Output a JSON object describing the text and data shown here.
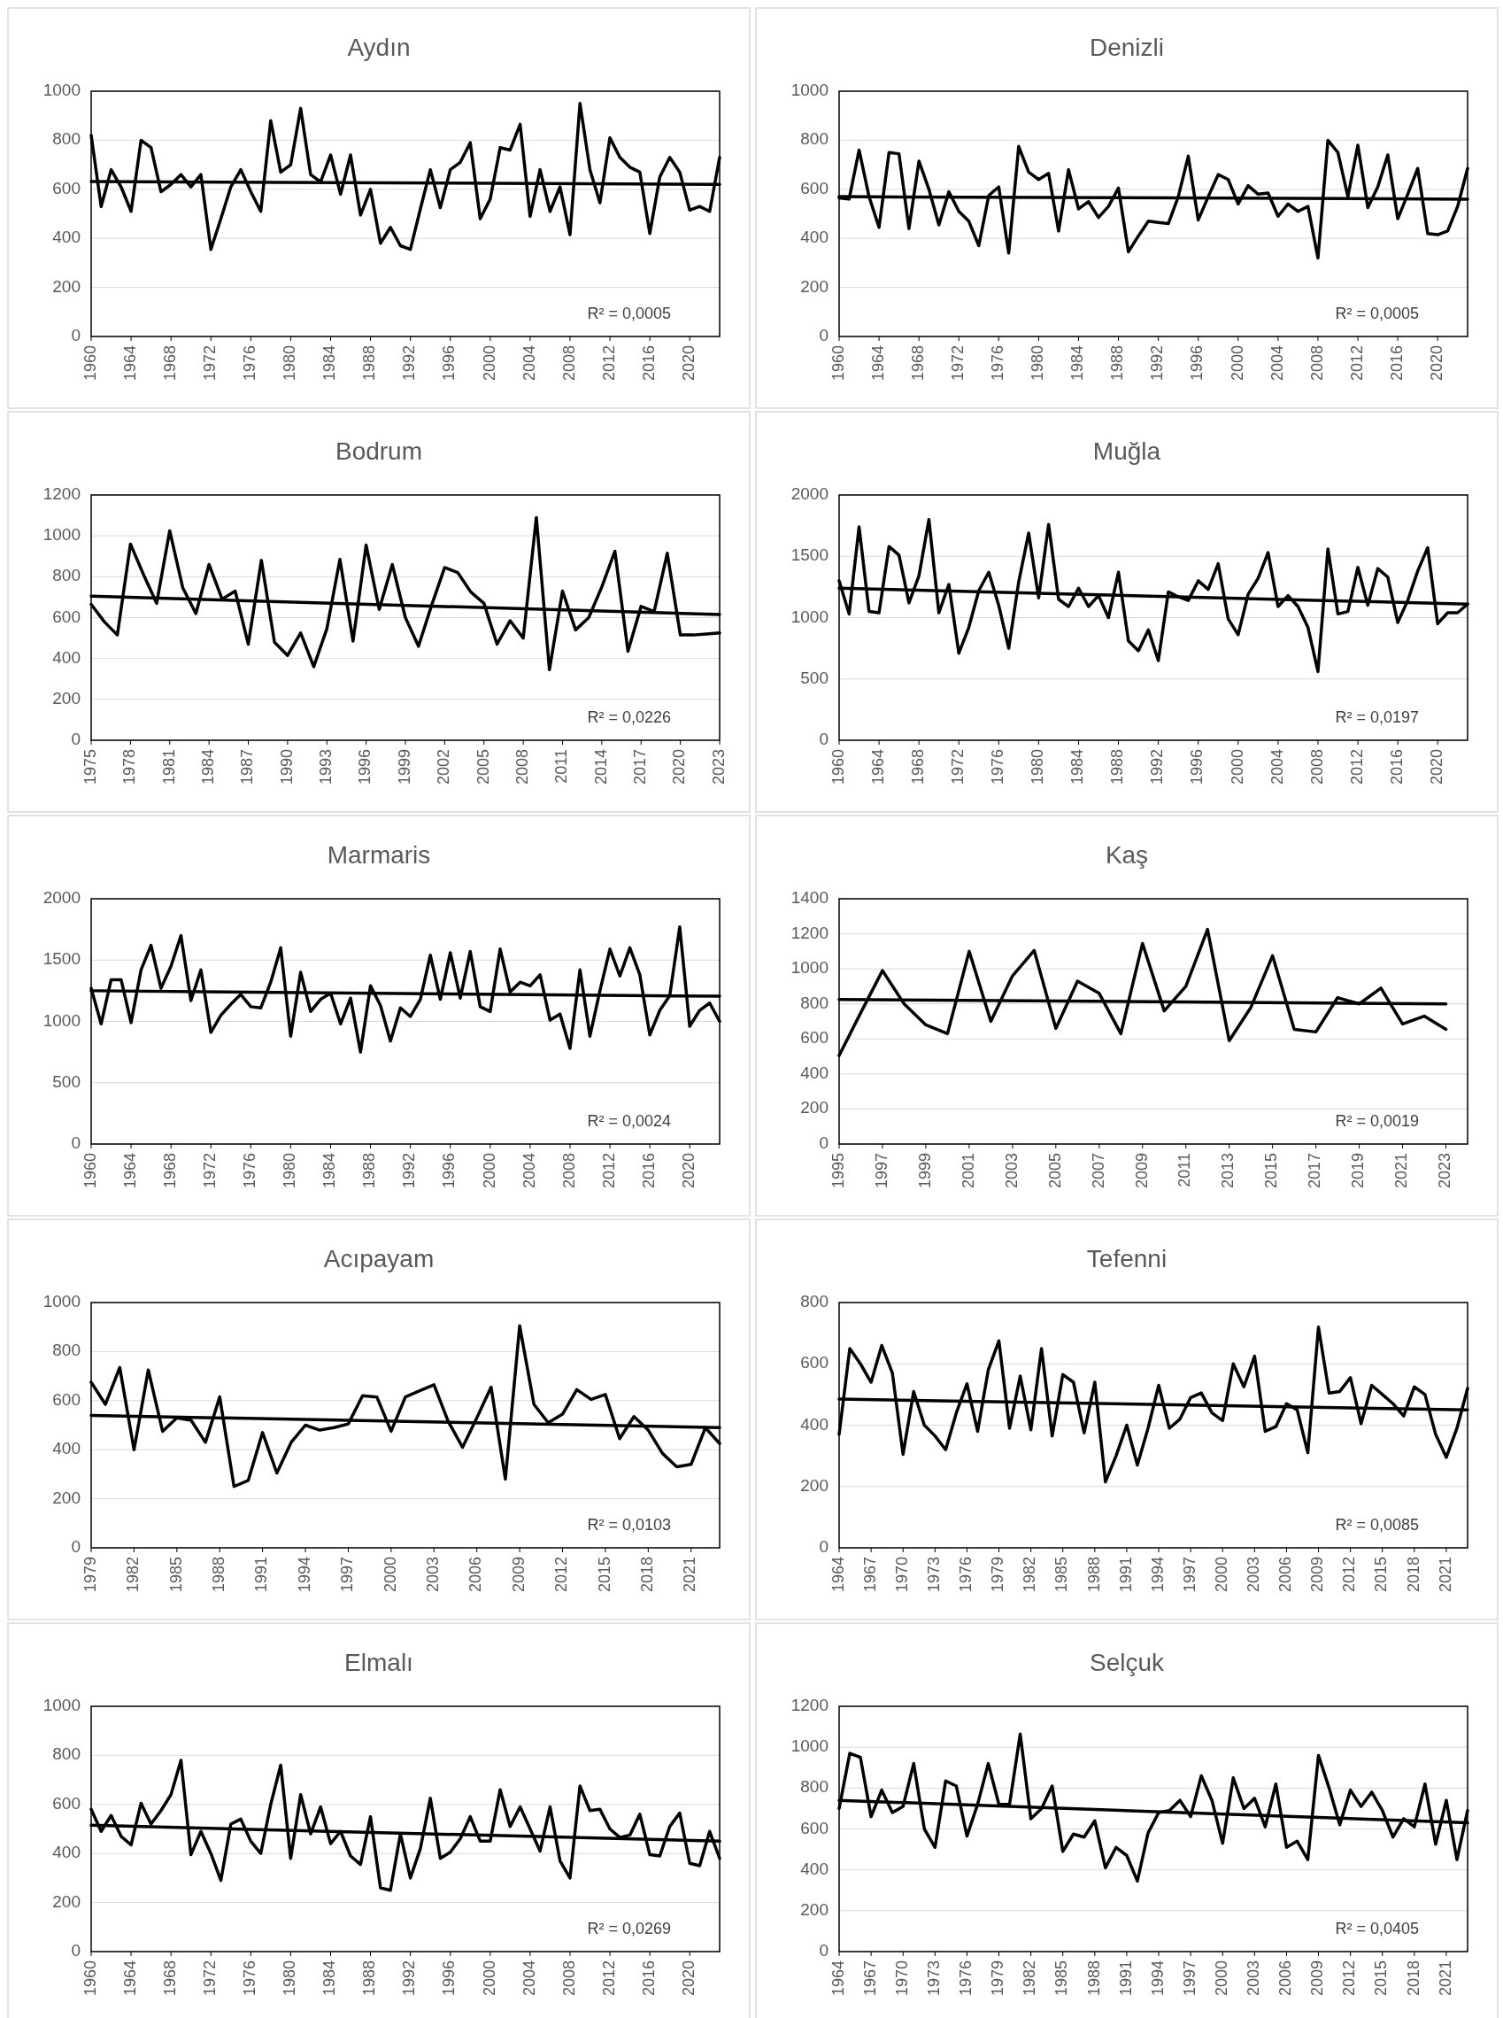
{
  "chart_data": [
    {
      "type": "line",
      "title": "Aydın",
      "x": [
        1960,
        1961,
        1962,
        1963,
        1964,
        1965,
        1966,
        1967,
        1968,
        1969,
        1970,
        1971,
        1972,
        1973,
        1974,
        1975,
        1976,
        1977,
        1978,
        1979,
        1980,
        1981,
        1982,
        1983,
        1984,
        1985,
        1986,
        1987,
        1988,
        1989,
        1990,
        1991,
        1992,
        1993,
        1994,
        1995,
        1996,
        1997,
        1998,
        1999,
        2000,
        2001,
        2002,
        2003,
        2004,
        2005,
        2006,
        2007,
        2008,
        2009,
        2010,
        2011,
        2012,
        2013,
        2014,
        2015,
        2016,
        2017,
        2018,
        2019,
        2020,
        2021,
        2022,
        2023
      ],
      "xlim": [
        1960,
        2023
      ],
      "xticks": [
        1960,
        1964,
        1968,
        1972,
        1976,
        1980,
        1984,
        1988,
        1992,
        1996,
        2000,
        2004,
        2008,
        2012,
        2016,
        2020
      ],
      "ylim": [
        0,
        1000
      ],
      "yticks": [
        0,
        200,
        400,
        600,
        800,
        1000
      ],
      "grid": "y",
      "series": [
        {
          "color": "#000000",
          "values": [
            820,
            530,
            680,
            610,
            510,
            800,
            770,
            590,
            620,
            660,
            610,
            660,
            355,
            480,
            610,
            680,
            590,
            510,
            880,
            670,
            700,
            930,
            660,
            630,
            740,
            580,
            740,
            495,
            600,
            380,
            445,
            370,
            355,
            520,
            680,
            525,
            680,
            710,
            790,
            480,
            560,
            770,
            760,
            865,
            490,
            680,
            510,
            610,
            415,
            950,
            680,
            545,
            810,
            730,
            690,
            670,
            420,
            650,
            730,
            670,
            515,
            530,
            510,
            730
          ]
        },
        {
          "type": "line",
          "color": "#000000",
          "x": [
            1960,
            2023
          ],
          "values": [
            632,
            620
          ]
        }
      ],
      "annotations": [
        "R² = 0,0005"
      ]
    },
    {
      "type": "line",
      "title": "Denizli",
      "x": [
        1960,
        1961,
        1962,
        1963,
        1964,
        1965,
        1966,
        1967,
        1968,
        1969,
        1970,
        1971,
        1972,
        1973,
        1974,
        1975,
        1976,
        1977,
        1978,
        1979,
        1980,
        1981,
        1982,
        1983,
        1984,
        1985,
        1986,
        1987,
        1988,
        1989,
        1990,
        1991,
        1992,
        1993,
        1994,
        1995,
        1996,
        1997,
        1998,
        1999,
        2000,
        2001,
        2002,
        2003,
        2004,
        2005,
        2006,
        2007,
        2008,
        2009,
        2010,
        2011,
        2012,
        2013,
        2014,
        2015,
        2016,
        2017,
        2018,
        2019,
        2020,
        2021,
        2022,
        2023
      ],
      "xlim": [
        1960,
        2023
      ],
      "xticks": [
        1960,
        1964,
        1968,
        1972,
        1976,
        1980,
        1984,
        1988,
        1992,
        1996,
        2000,
        2004,
        2008,
        2012,
        2016,
        2020
      ],
      "ylim": [
        0,
        1000
      ],
      "yticks": [
        0,
        200,
        400,
        600,
        800,
        1000
      ],
      "grid": "y",
      "series": [
        {
          "color": "#000000",
          "values": [
            565,
            560,
            760,
            570,
            445,
            750,
            745,
            440,
            715,
            600,
            455,
            590,
            510,
            470,
            370,
            575,
            610,
            340,
            775,
            670,
            640,
            665,
            430,
            680,
            520,
            550,
            485,
            530,
            605,
            345,
            410,
            470,
            465,
            460,
            570,
            735,
            475,
            570,
            660,
            640,
            540,
            615,
            580,
            585,
            490,
            540,
            510,
            530,
            320,
            800,
            750,
            570,
            780,
            525,
            610,
            740,
            480,
            580,
            685,
            420,
            415,
            430,
            530,
            685
          ]
        },
        {
          "type": "line",
          "color": "#000000",
          "x": [
            1960,
            2023
          ],
          "values": [
            570,
            560
          ]
        }
      ],
      "annotations": [
        "R² = 0,0005"
      ]
    },
    {
      "type": "line",
      "title": "Bodrum",
      "x": [
        1975,
        1976,
        1977,
        1978,
        1979,
        1980,
        1981,
        1982,
        1983,
        1984,
        1985,
        1986,
        1987,
        1988,
        1989,
        1990,
        1991,
        1992,
        1993,
        1994,
        1995,
        1996,
        1997,
        1998,
        1999,
        2000,
        2001,
        2002,
        2003,
        2004,
        2005,
        2006,
        2007,
        2008,
        2009,
        2010,
        2011,
        2012,
        2013,
        2014,
        2015,
        2016,
        2017,
        2018,
        2019,
        2020,
        2021,
        2022,
        2023
      ],
      "xlim": [
        1975,
        2023
      ],
      "xticks": [
        1975,
        1978,
        1981,
        1984,
        1987,
        1990,
        1993,
        1996,
        1999,
        2002,
        2005,
        2008,
        2011,
        2014,
        2017,
        2020,
        2023
      ],
      "ylim": [
        0,
        1200
      ],
      "yticks": [
        0,
        200,
        400,
        600,
        800,
        1000,
        1200
      ],
      "grid": "y",
      "series": [
        {
          "color": "#000000",
          "values": [
            665,
            580,
            515,
            960,
            810,
            670,
            1025,
            745,
            620,
            860,
            690,
            730,
            470,
            880,
            480,
            415,
            525,
            360,
            545,
            885,
            485,
            955,
            640,
            860,
            600,
            460,
            660,
            845,
            820,
            725,
            670,
            470,
            585,
            500,
            1090,
            345,
            730,
            540,
            600,
            750,
            925,
            435,
            655,
            630,
            915,
            515,
            515,
            520,
            525
          ]
        },
        {
          "type": "line",
          "color": "#000000",
          "x": [
            1975,
            2023
          ],
          "values": [
            705,
            615
          ]
        }
      ],
      "annotations": [
        "R² = 0,0226"
      ]
    },
    {
      "type": "line",
      "title": "Muğla",
      "x": [
        1960,
        1961,
        1962,
        1963,
        1964,
        1965,
        1966,
        1967,
        1968,
        1969,
        1970,
        1971,
        1972,
        1973,
        1974,
        1975,
        1976,
        1977,
        1978,
        1979,
        1980,
        1981,
        1982,
        1983,
        1984,
        1985,
        1986,
        1987,
        1988,
        1989,
        1990,
        1991,
        1992,
        1993,
        1994,
        1995,
        1996,
        1997,
        1998,
        1999,
        2000,
        2001,
        2002,
        2003,
        2004,
        2005,
        2006,
        2007,
        2008,
        2009,
        2010,
        2011,
        2012,
        2013,
        2014,
        2015,
        2016,
        2017,
        2018,
        2019,
        2020,
        2021,
        2022,
        2023
      ],
      "xlim": [
        1960,
        2023
      ],
      "xticks": [
        1960,
        1964,
        1968,
        1972,
        1976,
        1980,
        1984,
        1988,
        1992,
        1996,
        2000,
        2004,
        2008,
        2012,
        2016,
        2020
      ],
      "ylim": [
        0,
        2000
      ],
      "yticks": [
        0,
        500,
        1000,
        1500,
        2000
      ],
      "grid": "y",
      "series": [
        {
          "color": "#000000",
          "values": [
            1300,
            1030,
            1740,
            1050,
            1040,
            1580,
            1510,
            1120,
            1340,
            1800,
            1040,
            1270,
            710,
            920,
            1220,
            1370,
            1100,
            750,
            1290,
            1690,
            1160,
            1760,
            1150,
            1090,
            1240,
            1090,
            1180,
            1000,
            1370,
            810,
            730,
            900,
            650,
            1210,
            1170,
            1140,
            1300,
            1230,
            1440,
            990,
            860,
            1190,
            1320,
            1530,
            1090,
            1180,
            1090,
            920,
            560,
            1560,
            1030,
            1050,
            1410,
            1100,
            1400,
            1330,
            960,
            1140,
            1380,
            1570,
            950,
            1040,
            1040,
            1110
          ]
        },
        {
          "type": "line",
          "color": "#000000",
          "x": [
            1960,
            2023
          ],
          "values": [
            1240,
            1110
          ]
        }
      ],
      "annotations": [
        "R² = 0,0197"
      ]
    },
    {
      "type": "line",
      "title": "Marmaris",
      "x": [
        1960,
        1961,
        1962,
        1963,
        1964,
        1965,
        1966,
        1967,
        1968,
        1969,
        1970,
        1971,
        1972,
        1973,
        1974,
        1975,
        1976,
        1977,
        1978,
        1979,
        1980,
        1981,
        1982,
        1983,
        1984,
        1985,
        1986,
        1987,
        1988,
        1989,
        1990,
        1991,
        1992,
        1993,
        1994,
        1995,
        1996,
        1997,
        1998,
        1999,
        2000,
        2001,
        2002,
        2003,
        2004,
        2005,
        2006,
        2007,
        2008,
        2009,
        2010,
        2011,
        2012,
        2013,
        2014,
        2015,
        2016,
        2017,
        2018,
        2019,
        2020,
        2021,
        2022,
        2023
      ],
      "xlim": [
        1960,
        2023
      ],
      "xticks": [
        1960,
        1964,
        1968,
        1972,
        1976,
        1980,
        1984,
        1988,
        1992,
        1996,
        2000,
        2004,
        2008,
        2012,
        2016,
        2020
      ],
      "ylim": [
        0,
        2000
      ],
      "yticks": [
        0,
        500,
        1000,
        1500,
        2000
      ],
      "grid": "y",
      "series": [
        {
          "color": "#000000",
          "values": [
            1270,
            980,
            1340,
            1340,
            990,
            1420,
            1620,
            1270,
            1450,
            1700,
            1170,
            1420,
            910,
            1050,
            1140,
            1220,
            1120,
            1110,
            1320,
            1600,
            880,
            1400,
            1080,
            1180,
            1230,
            980,
            1190,
            750,
            1290,
            1130,
            840,
            1110,
            1040,
            1180,
            1540,
            1180,
            1560,
            1190,
            1570,
            1120,
            1080,
            1590,
            1240,
            1320,
            1290,
            1380,
            1010,
            1060,
            780,
            1420,
            880,
            1250,
            1590,
            1370,
            1600,
            1380,
            890,
            1090,
            1210,
            1770,
            960,
            1090,
            1150,
            1000
          ]
        },
        {
          "type": "line",
          "color": "#000000",
          "x": [
            1960,
            2023
          ],
          "values": [
            1250,
            1205
          ]
        }
      ],
      "annotations": [
        "R² = 0,0024"
      ]
    },
    {
      "type": "line",
      "title": "Kaş",
      "x": [
        1995,
        1996,
        1997,
        1998,
        1999,
        2000,
        2001,
        2002,
        2003,
        2004,
        2005,
        2006,
        2007,
        2008,
        2009,
        2010,
        2011,
        2012,
        2013,
        2014,
        2015,
        2016,
        2017,
        2018,
        2019,
        2020,
        2021,
        2022,
        2023
      ],
      "xlim": [
        1995,
        2024
      ],
      "xticks": [
        1995,
        1997,
        1999,
        2001,
        2003,
        2005,
        2007,
        2009,
        2011,
        2013,
        2015,
        2017,
        2019,
        2021,
        2023
      ],
      "ylim": [
        0,
        1400
      ],
      "yticks": [
        0,
        200,
        400,
        600,
        800,
        1000,
        1200,
        1400
      ],
      "grid": "y",
      "series": [
        {
          "color": "#000000",
          "values": [
            505,
            750,
            990,
            800,
            680,
            630,
            1100,
            700,
            960,
            1105,
            660,
            930,
            860,
            630,
            1145,
            760,
            900,
            1225,
            590,
            780,
            1075,
            655,
            640,
            835,
            800,
            890,
            685,
            730,
            655
          ]
        },
        {
          "type": "line",
          "color": "#000000",
          "x": [
            1995,
            2023
          ],
          "values": [
            825,
            800
          ]
        }
      ],
      "annotations": [
        "R² = 0,0019"
      ]
    },
    {
      "type": "line",
      "title": "Acıpayam",
      "x": [
        1979,
        1980,
        1981,
        1982,
        1983,
        1984,
        1985,
        1986,
        1987,
        1988,
        1989,
        1990,
        1991,
        1992,
        1993,
        1994,
        1995,
        1996,
        1997,
        1998,
        1999,
        2000,
        2001,
        2002,
        2003,
        2004,
        2005,
        2006,
        2007,
        2008,
        2009,
        2010,
        2011,
        2012,
        2013,
        2014,
        2015,
        2016,
        2017,
        2018,
        2019,
        2020,
        2021,
        2022,
        2023
      ],
      "xlim": [
        1979,
        2023
      ],
      "xticks": [
        1979,
        1982,
        1985,
        1988,
        1991,
        1994,
        1997,
        2000,
        2003,
        2006,
        2009,
        2012,
        2015,
        2018,
        2021
      ],
      "ylim": [
        0,
        1000
      ],
      "yticks": [
        0,
        200,
        400,
        600,
        800,
        1000
      ],
      "grid": "y",
      "series": [
        {
          "color": "#000000",
          "values": [
            675,
            585,
            735,
            400,
            725,
            475,
            530,
            520,
            430,
            615,
            250,
            275,
            470,
            305,
            430,
            500,
            480,
            490,
            505,
            620,
            615,
            475,
            615,
            640,
            665,
            515,
            410,
            530,
            655,
            280,
            905,
            585,
            510,
            545,
            645,
            605,
            625,
            445,
            535,
            480,
            385,
            330,
            340,
            490,
            425
          ]
        },
        {
          "type": "line",
          "color": "#000000",
          "x": [
            1979,
            2023
          ],
          "values": [
            540,
            490
          ]
        }
      ],
      "annotations": [
        "R² = 0,0103"
      ]
    },
    {
      "type": "line",
      "title": "Tefenni",
      "x": [
        1964,
        1965,
        1966,
        1967,
        1968,
        1969,
        1970,
        1971,
        1972,
        1973,
        1974,
        1975,
        1976,
        1977,
        1978,
        1979,
        1980,
        1981,
        1982,
        1983,
        1984,
        1985,
        1986,
        1987,
        1988,
        1989,
        1990,
        1991,
        1992,
        1993,
        1994,
        1995,
        1996,
        1997,
        1998,
        1999,
        2000,
        2001,
        2002,
        2003,
        2004,
        2005,
        2006,
        2007,
        2008,
        2009,
        2010,
        2011,
        2012,
        2013,
        2014,
        2015,
        2016,
        2017,
        2018,
        2019,
        2020,
        2021,
        2022,
        2023
      ],
      "xlim": [
        1964,
        2023
      ],
      "xticks": [
        1964,
        1967,
        1970,
        1973,
        1976,
        1979,
        1982,
        1985,
        1988,
        1991,
        1994,
        1997,
        2000,
        2003,
        2006,
        2009,
        2012,
        2015,
        2018,
        2021
      ],
      "ylim": [
        0,
        800
      ],
      "yticks": [
        0,
        200,
        400,
        600,
        800
      ],
      "grid": "y",
      "series": [
        {
          "color": "#000000",
          "values": [
            370,
            650,
            600,
            540,
            660,
            570,
            305,
            510,
            400,
            365,
            320,
            440,
            535,
            380,
            580,
            675,
            390,
            560,
            385,
            650,
            365,
            565,
            540,
            375,
            540,
            215,
            300,
            400,
            270,
            390,
            530,
            390,
            420,
            490,
            505,
            440,
            415,
            600,
            525,
            625,
            380,
            395,
            470,
            450,
            310,
            720,
            505,
            510,
            555,
            405,
            530,
            500,
            470,
            430,
            525,
            500,
            370,
            295,
            390,
            520
          ]
        },
        {
          "type": "line",
          "color": "#000000",
          "x": [
            1964,
            2023
          ],
          "values": [
            485,
            450
          ]
        }
      ],
      "annotations": [
        "R² = 0,0085"
      ]
    },
    {
      "type": "line",
      "title": "Elmalı",
      "x": [
        1960,
        1961,
        1962,
        1963,
        1964,
        1965,
        1966,
        1967,
        1968,
        1969,
        1970,
        1971,
        1972,
        1973,
        1974,
        1975,
        1976,
        1977,
        1978,
        1979,
        1980,
        1981,
        1982,
        1983,
        1984,
        1985,
        1986,
        1987,
        1988,
        1989,
        1990,
        1991,
        1992,
        1993,
        1994,
        1995,
        1996,
        1997,
        1998,
        1999,
        2000,
        2001,
        2002,
        2003,
        2004,
        2005,
        2006,
        2007,
        2008,
        2009,
        2010,
        2011,
        2012,
        2013,
        2014,
        2015,
        2016,
        2017,
        2018,
        2019,
        2020,
        2021,
        2022,
        2023
      ],
      "xlim": [
        1960,
        2023
      ],
      "xticks": [
        1960,
        1964,
        1968,
        1972,
        1976,
        1980,
        1984,
        1988,
        1992,
        1996,
        2000,
        2004,
        2008,
        2012,
        2016,
        2020
      ],
      "ylim": [
        0,
        1000
      ],
      "yticks": [
        0,
        200,
        400,
        600,
        800,
        1000
      ],
      "grid": "y",
      "series": [
        {
          "color": "#000000",
          "values": [
            580,
            490,
            555,
            470,
            435,
            605,
            520,
            575,
            640,
            780,
            395,
            490,
            400,
            290,
            520,
            540,
            450,
            400,
            600,
            760,
            380,
            640,
            480,
            590,
            440,
            490,
            390,
            355,
            550,
            260,
            250,
            480,
            300,
            420,
            625,
            380,
            405,
            460,
            550,
            450,
            450,
            660,
            510,
            590,
            500,
            410,
            590,
            370,
            300,
            675,
            575,
            580,
            500,
            465,
            475,
            560,
            395,
            390,
            510,
            565,
            360,
            350,
            490,
            380
          ]
        },
        {
          "type": "line",
          "color": "#000000",
          "x": [
            1960,
            2023
          ],
          "values": [
            515,
            450
          ]
        }
      ],
      "annotations": [
        "R² = 0,0269"
      ]
    },
    {
      "type": "line",
      "title": "Selçuk",
      "x": [
        1964,
        1965,
        1966,
        1967,
        1968,
        1969,
        1970,
        1971,
        1972,
        1973,
        1974,
        1975,
        1976,
        1977,
        1978,
        1979,
        1980,
        1981,
        1982,
        1983,
        1984,
        1985,
        1986,
        1987,
        1988,
        1989,
        1990,
        1991,
        1992,
        1993,
        1994,
        1995,
        1996,
        1997,
        1998,
        1999,
        2000,
        2001,
        2002,
        2003,
        2004,
        2005,
        2006,
        2007,
        2008,
        2009,
        2010,
        2011,
        2012,
        2013,
        2014,
        2015,
        2016,
        2017,
        2018,
        2019,
        2020,
        2021,
        2022,
        2023
      ],
      "xlim": [
        1964,
        2023
      ],
      "xticks": [
        1964,
        1967,
        1970,
        1973,
        1976,
        1979,
        1982,
        1985,
        1988,
        1991,
        1994,
        1997,
        2000,
        2003,
        2006,
        2009,
        2012,
        2015,
        2018,
        2021
      ],
      "ylim": [
        0,
        1200
      ],
      "yticks": [
        0,
        200,
        400,
        600,
        800,
        1000,
        1200
      ],
      "grid": "y",
      "series": [
        {
          "color": "#000000",
          "values": [
            700,
            970,
            950,
            660,
            790,
            680,
            710,
            920,
            600,
            510,
            835,
            810,
            565,
            720,
            920,
            720,
            720,
            1065,
            650,
            700,
            810,
            490,
            575,
            560,
            640,
            410,
            510,
            470,
            345,
            580,
            680,
            690,
            740,
            660,
            860,
            740,
            530,
            850,
            700,
            750,
            610,
            820,
            510,
            540,
            450,
            960,
            800,
            620,
            790,
            710,
            780,
            690,
            560,
            650,
            610,
            820,
            525,
            740,
            450,
            690
          ]
        },
        {
          "type": "line",
          "color": "#000000",
          "x": [
            1964,
            2023
          ],
          "values": [
            740,
            630
          ]
        }
      ],
      "annotations": [
        "R² = 0,0405"
      ]
    }
  ]
}
